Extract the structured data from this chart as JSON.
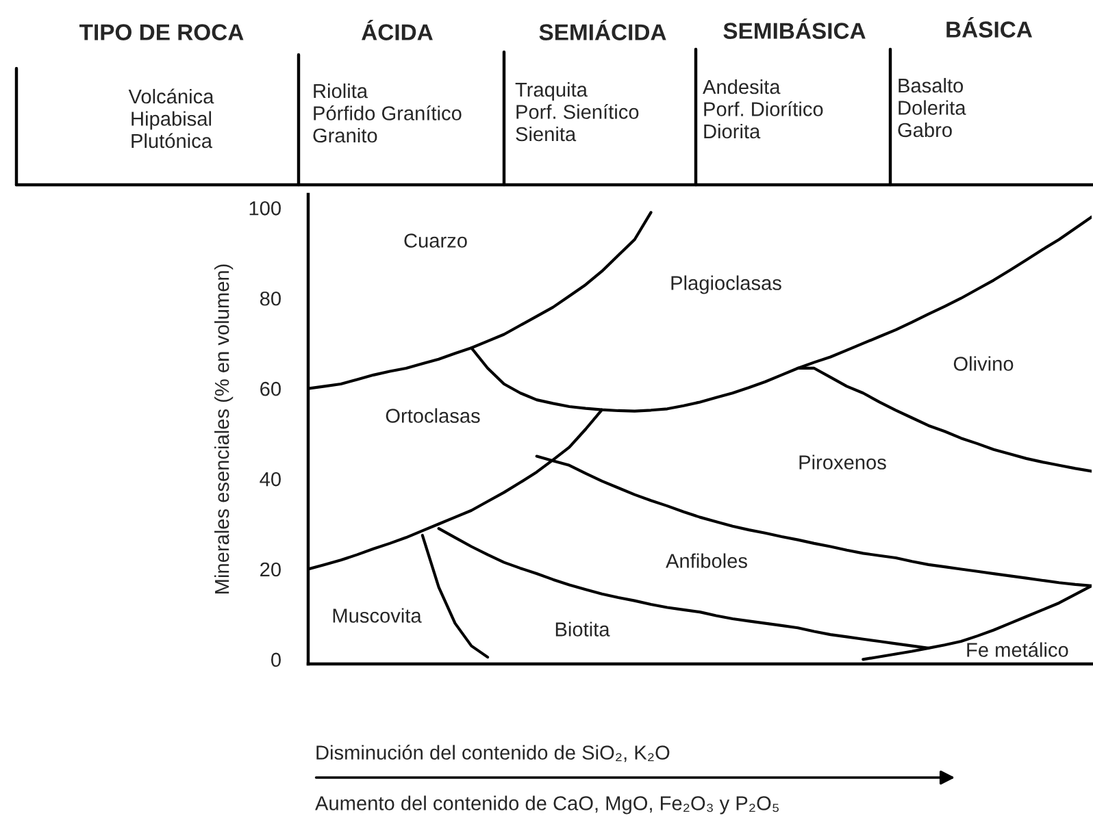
{
  "chart_data": {
    "type": "line",
    "ylabel": "Minerales esenciales (% en volumen)",
    "categories": [
      null,
      null,
      null,
      null,
      null,
      null,
      null,
      null,
      null,
      null,
      null,
      null,
      null,
      null,
      null,
      null,
      null,
      null,
      null,
      null,
      null,
      null,
      null,
      null,
      null,
      null,
      null,
      null,
      null,
      null,
      null,
      null,
      null,
      null,
      null,
      null,
      null,
      null,
      null,
      null,
      null,
      null,
      null,
      null,
      null,
      null,
      null,
      null,
      null
    ],
    "ylim": [
      -1,
      103
    ],
    "yticks": [
      0,
      20,
      40,
      60,
      80,
      100
    ],
    "grid": false,
    "legend": false,
    "marker": "none",
    "line_style": "solid",
    "series": [
      {
        "color": "#000000",
        "values": [
          60,
          60.5,
          61,
          62,
          63,
          63.8,
          64.5,
          65.5,
          66.5,
          67.8,
          69,
          70.5,
          72,
          74,
          76,
          78,
          80.5,
          83,
          86,
          89.5,
          93,
          99,
          null,
          null,
          null,
          null,
          null,
          null,
          null,
          null,
          null,
          null,
          null,
          null,
          null,
          null,
          null,
          null,
          null,
          null,
          null,
          null,
          null,
          null,
          null,
          null,
          null,
          null,
          null
        ]
      },
      {
        "color": "#000000",
        "values": [
          null,
          null,
          null,
          null,
          null,
          null,
          null,
          null,
          null,
          null,
          69,
          64.5,
          61,
          59,
          57.5,
          56.7,
          56,
          55.6,
          55.3,
          55.1,
          55,
          55.2,
          55.5,
          56.2,
          57,
          58,
          59,
          60.2,
          61.5,
          63,
          64.5,
          65.8,
          67,
          68.5,
          70,
          71.5,
          73,
          74.7,
          76.5,
          78.2,
          80,
          82,
          84,
          86.2,
          88.5,
          90.8,
          93,
          95.5,
          98
        ]
      },
      {
        "color": "#000000",
        "values": [
          20,
          21,
          22,
          23.2,
          24.5,
          25.7,
          27,
          28.5,
          30,
          31.5,
          33,
          35,
          37,
          39.2,
          41.5,
          44.2,
          47,
          51,
          55.3,
          null,
          null,
          null,
          null,
          null,
          null,
          null,
          null,
          null,
          null,
          null,
          null,
          null,
          null,
          null,
          null,
          null,
          null,
          null,
          null,
          null,
          null,
          null,
          null,
          null,
          null,
          null,
          null,
          null,
          null
        ]
      },
      {
        "color": "#000000",
        "values": [
          null,
          null,
          null,
          null,
          null,
          null,
          null,
          null,
          null,
          null,
          null,
          null,
          null,
          null,
          45,
          44,
          43,
          41.2,
          39.5,
          38,
          36.5,
          35.2,
          34,
          32.7,
          31.5,
          30.5,
          29.5,
          28.7,
          28,
          27.2,
          26.5,
          25.7,
          25,
          24.2,
          23.5,
          23,
          22.5,
          21.7,
          21,
          20.5,
          20,
          19.5,
          19,
          18.5,
          18,
          17.5,
          17,
          16.6,
          16.3
        ]
      },
      {
        "color": "#000000",
        "values": [
          null,
          null,
          null,
          null,
          null,
          null,
          null,
          null,
          29,
          27,
          25,
          23.2,
          21.5,
          20.2,
          19,
          17.7,
          16.5,
          15.5,
          14.5,
          13.7,
          13,
          12.2,
          11.5,
          11,
          10.5,
          9.7,
          9,
          8.5,
          8,
          7.5,
          7,
          6.2,
          5.5,
          5,
          4.5,
          4,
          3.5,
          3,
          2.5,
          null,
          null,
          null,
          null,
          null,
          null,
          null,
          null,
          null,
          null
        ]
      },
      {
        "color": "#000000",
        "values": [
          null,
          null,
          null,
          null,
          null,
          null,
          null,
          null,
          null,
          null,
          null,
          null,
          null,
          null,
          null,
          null,
          null,
          null,
          null,
          null,
          null,
          null,
          null,
          null,
          null,
          null,
          null,
          null,
          null,
          null,
          null,
          null,
          null,
          null,
          0,
          0.6,
          1.2,
          1.8,
          2.5,
          3.2,
          4,
          5.2,
          6.5,
          8,
          9.5,
          11,
          12.5,
          14.4,
          16.3
        ]
      },
      {
        "color": "#000000",
        "values": [
          null,
          null,
          null,
          null,
          null,
          null,
          null,
          27.5,
          16,
          8,
          3,
          0.5,
          null,
          null,
          null,
          null,
          null,
          null,
          null,
          null,
          null,
          null,
          null,
          null,
          null,
          null,
          null,
          null,
          null,
          null,
          null,
          null,
          null,
          null,
          null,
          null,
          null,
          null,
          null,
          null,
          null,
          null,
          null,
          null,
          null,
          null,
          null,
          null,
          null
        ]
      },
      {
        "color": "#000000",
        "values": [
          null,
          null,
          null,
          null,
          null,
          null,
          null,
          null,
          null,
          null,
          null,
          null,
          null,
          null,
          null,
          null,
          null,
          null,
          null,
          null,
          null,
          null,
          null,
          null,
          null,
          null,
          null,
          null,
          null,
          null,
          64.5,
          64.5,
          62.5,
          60.5,
          59,
          57,
          55.2,
          53.5,
          51.8,
          50.5,
          49,
          47.8,
          46.5,
          45.5,
          44.5,
          43.7,
          43,
          42.3,
          41.7
        ]
      }
    ],
    "annotations": [
      "Cuarzo",
      "Plagioclasas",
      "Olivino",
      "Ortoclasas",
      "Piroxenos",
      "Anfiboles",
      "Muscovita",
      "Biotita",
      "Fe metálico",
      "TIPO DE ROCA",
      "ÁCIDA",
      "SEMIÁCIDA",
      "SEMIBÁSICA",
      "BÁSICA",
      "Volcánica\nHipabisal\nPlutónica",
      "Riolita\nPórfido Granítico\nGranito",
      "Traquita\nPorf. Sienítico\nSienita",
      "Andesita\nPorf. Diorítico\nDiorita",
      "Basalto\nDolerita\nGabro",
      "Disminución del contenido de SiO₂, K₂O",
      "Aumento del contenido de CaO, MgO, Fe₂O₃ y P₂O₅"
    ]
  }
}
